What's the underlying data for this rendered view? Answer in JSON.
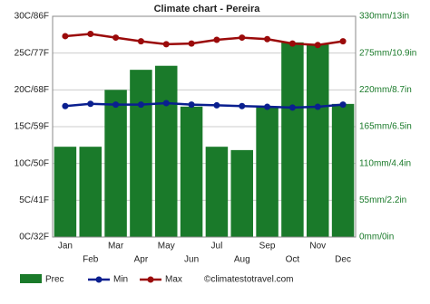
{
  "chart_data": {
    "type": "bar",
    "title": "Climate chart - Pereira",
    "categories": [
      "Jan",
      "Feb",
      "Mar",
      "Apr",
      "May",
      "Jun",
      "Jul",
      "Aug",
      "Sep",
      "Oct",
      "Nov",
      "Dec"
    ],
    "series": [
      {
        "name": "Prec",
        "type": "bar",
        "axis": "y2",
        "color": "#1a7a2a",
        "values": [
          135,
          135,
          220,
          250,
          256,
          195,
          135,
          130,
          195,
          291,
          288,
          199
        ]
      },
      {
        "name": "Min",
        "type": "line",
        "color": "#0a1f8f",
        "values": [
          17.8,
          18.1,
          18,
          18,
          18.2,
          18,
          17.9,
          17.8,
          17.7,
          17.6,
          17.7,
          18
        ]
      },
      {
        "name": "Max",
        "type": "line",
        "color": "#9b0a0a",
        "values": [
          27.3,
          27.6,
          27.1,
          26.6,
          26.2,
          26.3,
          26.8,
          27.1,
          26.9,
          26.3,
          26.1,
          26.6
        ]
      }
    ],
    "ylim": [
      0,
      30
    ],
    "yticks": [
      {
        "value": 0,
        "label": "0C/32F"
      },
      {
        "value": 5,
        "label": "5C/41F"
      },
      {
        "value": 10,
        "label": "10C/50F"
      },
      {
        "value": 15,
        "label": "15C/59F"
      },
      {
        "value": 20,
        "label": "20C/68F"
      },
      {
        "value": 25,
        "label": "25C/77F"
      },
      {
        "value": 30,
        "label": "30C/86F"
      }
    ],
    "y2lim": [
      0,
      330
    ],
    "y2ticks": [
      {
        "value": 0,
        "label": "0mm/0in"
      },
      {
        "value": 55,
        "label": "55mm/2.2in"
      },
      {
        "value": 110,
        "label": "110mm/4.4in"
      },
      {
        "value": 165,
        "label": "165mm/6.5in"
      },
      {
        "value": 220,
        "label": "220mm/8.7in"
      },
      {
        "value": 275,
        "label": "275mm/10.9in"
      },
      {
        "value": 330,
        "label": "330mm/13in"
      }
    ],
    "grid": true,
    "source": "©climatestotravel.com"
  }
}
